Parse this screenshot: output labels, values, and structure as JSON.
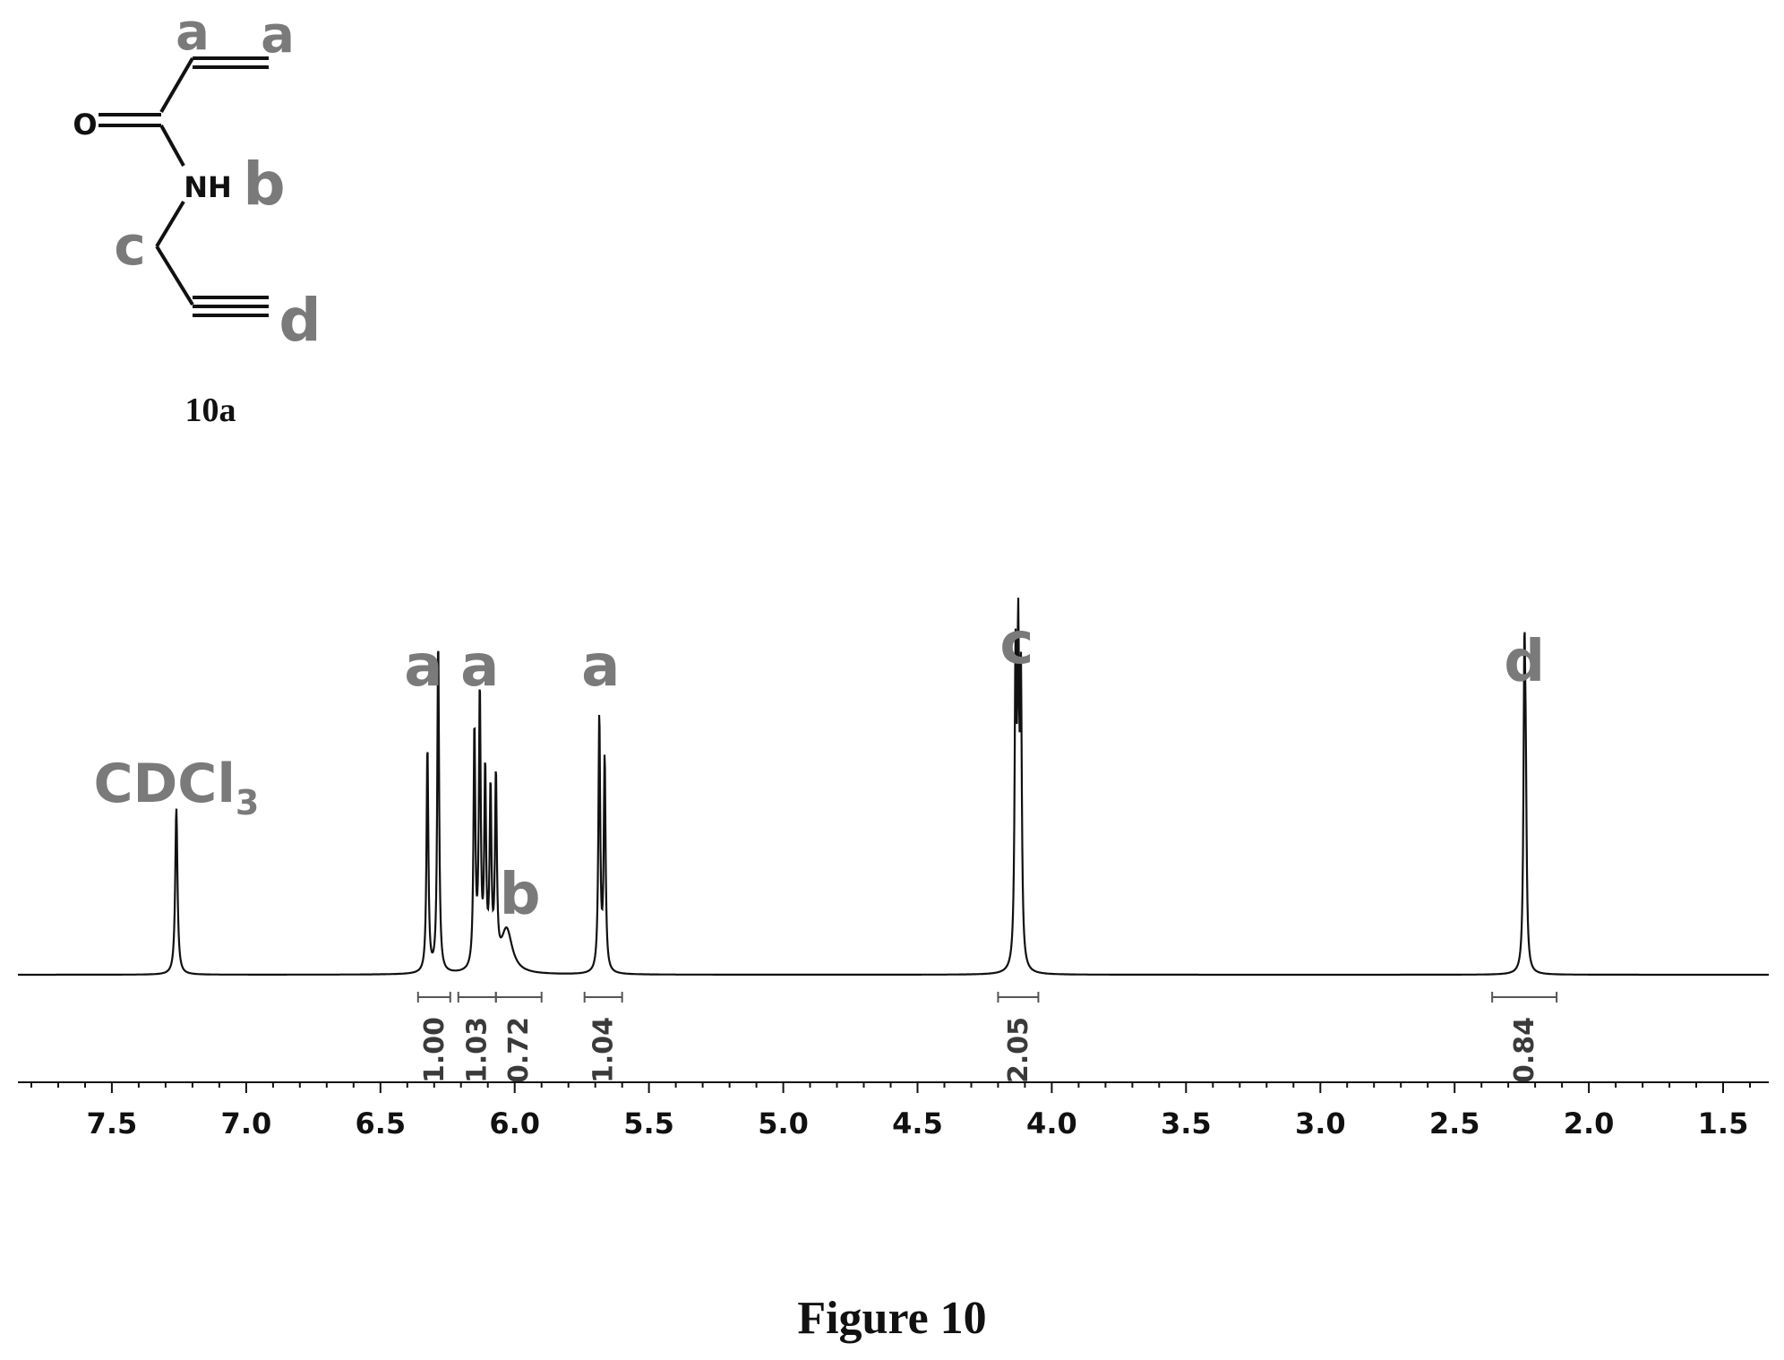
{
  "structure": {
    "atoms": {
      "oxygen": "O",
      "nh": "NH"
    },
    "proton_labels": {
      "a1": "a",
      "a2": "a",
      "b": "b",
      "c": "c",
      "d": "d"
    },
    "compound_label": "10a"
  },
  "chart_data": {
    "type": "line",
    "title": "",
    "xlabel": "",
    "ylabel": "",
    "xlim": [
      7.85,
      1.33
    ],
    "x_reversed": true,
    "ticks": [
      7.5,
      7.0,
      6.5,
      6.0,
      5.5,
      5.0,
      4.5,
      4.0,
      3.5,
      3.0,
      2.5,
      2.0,
      1.5
    ],
    "tick_labels": [
      "7.5",
      "7.0",
      "6.5",
      "6.0",
      "5.5",
      "5.0",
      "4.5",
      "4.0",
      "3.5",
      "3.0",
      "2.5",
      "2.0",
      "1.5"
    ],
    "peaks": [
      {
        "ppm": 7.26,
        "height": 0.5,
        "width": 0.005
      },
      {
        "ppm": 6.325,
        "height": 0.68,
        "width": 0.004
      },
      {
        "ppm": 6.285,
        "height": 1.0,
        "width": 0.004
      },
      {
        "ppm": 6.15,
        "height": 0.72,
        "width": 0.004
      },
      {
        "ppm": 6.13,
        "height": 0.82,
        "width": 0.004
      },
      {
        "ppm": 6.11,
        "height": 0.58,
        "width": 0.004
      },
      {
        "ppm": 6.09,
        "height": 0.52,
        "width": 0.004
      },
      {
        "ppm": 6.07,
        "height": 0.56,
        "width": 0.004
      },
      {
        "ppm": 6.03,
        "height": 0.13,
        "width": 0.025
      },
      {
        "ppm": 5.685,
        "height": 0.77,
        "width": 0.004
      },
      {
        "ppm": 5.665,
        "height": 0.64,
        "width": 0.004
      },
      {
        "ppm": 4.135,
        "height": 0.88,
        "width": 0.004
      },
      {
        "ppm": 4.125,
        "height": 0.9,
        "width": 0.004
      },
      {
        "ppm": 4.115,
        "height": 0.82,
        "width": 0.004
      },
      {
        "ppm": 2.24,
        "height": 0.88,
        "width": 0.004
      },
      {
        "ppm": 2.235,
        "height": 0.42,
        "width": 0.004
      }
    ],
    "peak_labels": [
      {
        "text": "CDCl",
        "subscript": "3",
        "ppm": 7.26
      },
      {
        "text": "a",
        "ppm": 6.34
      },
      {
        "text": "a",
        "ppm": 6.13
      },
      {
        "text": "b",
        "ppm": 5.98
      },
      {
        "text": "a",
        "ppm": 5.68
      },
      {
        "text": "c",
        "ppm": 4.13
      },
      {
        "text": "d",
        "ppm": 2.24
      }
    ],
    "integrals": [
      {
        "value": "1.00",
        "from": 6.36,
        "to": 6.24
      },
      {
        "value": "1.03",
        "from": 6.21,
        "to": 6.07
      },
      {
        "value": "0.72",
        "from": 6.07,
        "to": 5.9
      },
      {
        "value": "1.04",
        "from": 5.74,
        "to": 5.6
      },
      {
        "value": "2.05",
        "from": 4.2,
        "to": 4.05
      },
      {
        "value": "0.84",
        "from": 2.36,
        "to": 2.12
      }
    ],
    "grid": false,
    "legend": "none"
  },
  "caption": "Figure 10"
}
